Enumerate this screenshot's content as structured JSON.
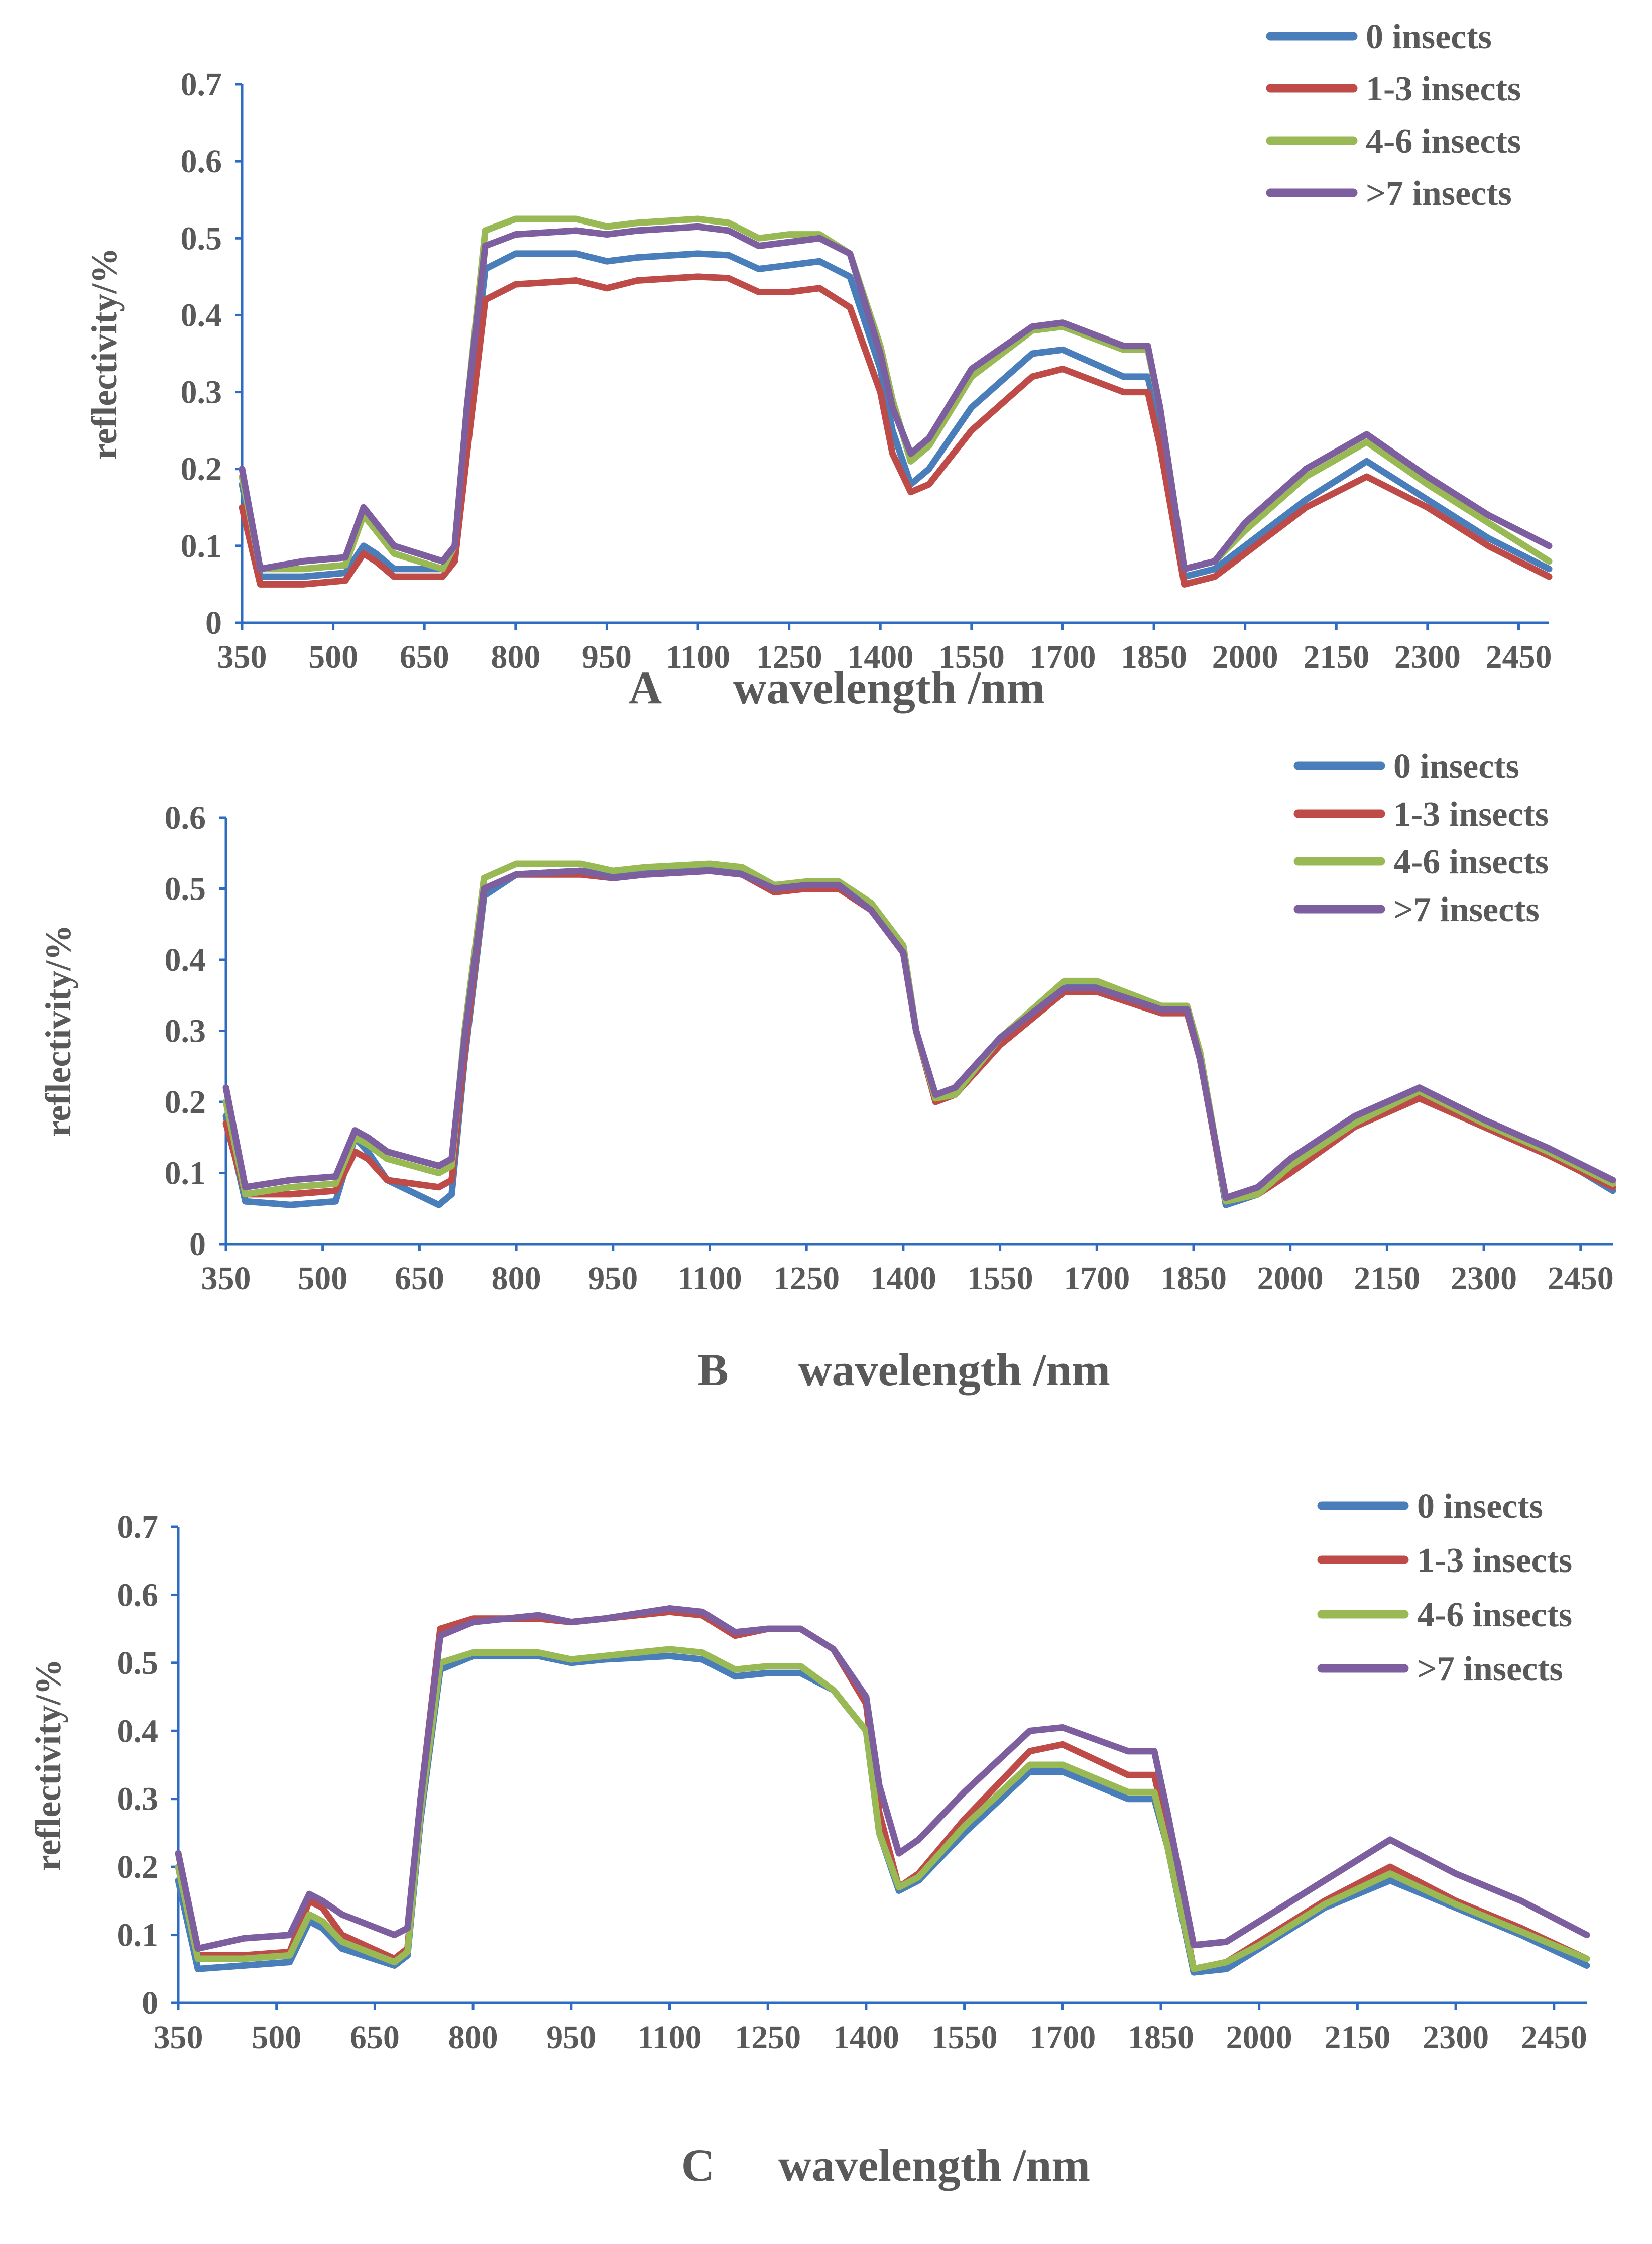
{
  "figure": {
    "panel_count": 3
  },
  "chart_data": [
    {
      "type": "line",
      "panel_label": "A",
      "xlabel": "wavelength /nm",
      "ylabel": "reflectivity/%",
      "xlim": [
        350,
        2500
      ],
      "ylim": [
        0,
        0.7
      ],
      "x_ticks": [
        350,
        500,
        650,
        800,
        950,
        1100,
        1250,
        1400,
        1550,
        1700,
        1850,
        2000,
        2150,
        2300,
        2450
      ],
      "y_ticks": [
        "0",
        "0.1",
        "0.2",
        "0.3",
        "0.4",
        "0.5",
        "0.6",
        "0.7"
      ],
      "legend": [
        "0 insects",
        "1-3 insects",
        "4-6 insects",
        ">7 insects"
      ],
      "x": [
        350,
        380,
        450,
        520,
        550,
        570,
        600,
        680,
        700,
        720,
        750,
        800,
        900,
        950,
        1000,
        1100,
        1150,
        1200,
        1250,
        1300,
        1350,
        1400,
        1420,
        1450,
        1480,
        1550,
        1650,
        1700,
        1800,
        1840,
        1860,
        1900,
        1950,
        2000,
        2100,
        2200,
        2300,
        2400,
        2500
      ],
      "series": [
        {
          "name": "0 insects",
          "color": "#4a7ebb",
          "values": [
            0.18,
            0.06,
            0.06,
            0.065,
            0.1,
            0.09,
            0.07,
            0.07,
            0.09,
            0.25,
            0.46,
            0.48,
            0.48,
            0.47,
            0.475,
            0.48,
            0.478,
            0.46,
            0.465,
            0.47,
            0.45,
            0.33,
            0.25,
            0.18,
            0.2,
            0.28,
            0.35,
            0.355,
            0.32,
            0.32,
            0.25,
            0.06,
            0.07,
            0.1,
            0.16,
            0.21,
            0.16,
            0.11,
            0.07
          ]
        },
        {
          "name": "1-3 insects",
          "color": "#be4b48",
          "values": [
            0.15,
            0.05,
            0.05,
            0.055,
            0.09,
            0.08,
            0.06,
            0.06,
            0.08,
            0.22,
            0.42,
            0.44,
            0.445,
            0.435,
            0.445,
            0.45,
            0.448,
            0.43,
            0.43,
            0.435,
            0.41,
            0.3,
            0.22,
            0.17,
            0.18,
            0.25,
            0.32,
            0.33,
            0.3,
            0.3,
            0.23,
            0.05,
            0.06,
            0.09,
            0.15,
            0.19,
            0.15,
            0.1,
            0.06
          ]
        },
        {
          "name": "4-6 insects",
          "color": "#98b954",
          "values": [
            0.19,
            0.07,
            0.07,
            0.075,
            0.14,
            0.12,
            0.09,
            0.07,
            0.1,
            0.28,
            0.51,
            0.525,
            0.525,
            0.515,
            0.52,
            0.525,
            0.52,
            0.5,
            0.505,
            0.505,
            0.48,
            0.36,
            0.29,
            0.21,
            0.23,
            0.32,
            0.38,
            0.385,
            0.355,
            0.355,
            0.28,
            0.07,
            0.08,
            0.12,
            0.19,
            0.235,
            0.18,
            0.13,
            0.08
          ]
        },
        {
          "name": ">7 insects",
          "color": "#7d5fa0",
          "values": [
            0.2,
            0.07,
            0.08,
            0.085,
            0.15,
            0.13,
            0.1,
            0.08,
            0.1,
            0.28,
            0.49,
            0.505,
            0.51,
            0.505,
            0.51,
            0.515,
            0.51,
            0.49,
            0.495,
            0.5,
            0.48,
            0.35,
            0.28,
            0.22,
            0.24,
            0.33,
            0.385,
            0.39,
            0.36,
            0.36,
            0.28,
            0.07,
            0.08,
            0.13,
            0.2,
            0.245,
            0.19,
            0.14,
            0.1
          ]
        }
      ]
    },
    {
      "type": "line",
      "panel_label": "B",
      "xlabel": "wavelength /nm",
      "ylabel": "reflectivity/%",
      "xlim": [
        350,
        2500
      ],
      "ylim": [
        0,
        0.6
      ],
      "x_ticks": [
        350,
        500,
        650,
        800,
        950,
        1100,
        1250,
        1400,
        1550,
        1700,
        1850,
        2000,
        2150,
        2300,
        2450
      ],
      "y_ticks": [
        "0",
        "0.1",
        "0.2",
        "0.3",
        "0.4",
        "0.5",
        "0.6"
      ],
      "legend": [
        "0 insects",
        "1-3 insects",
        "4-6 insects",
        ">7 insects"
      ],
      "x": [
        350,
        380,
        450,
        520,
        550,
        570,
        600,
        680,
        700,
        720,
        750,
        800,
        900,
        950,
        1000,
        1100,
        1150,
        1200,
        1250,
        1300,
        1350,
        1400,
        1420,
        1450,
        1480,
        1550,
        1650,
        1700,
        1800,
        1840,
        1860,
        1900,
        1950,
        2000,
        2100,
        2200,
        2300,
        2400,
        2500
      ],
      "series": [
        {
          "name": "0 insects",
          "color": "#4a7ebb",
          "values": [
            0.18,
            0.06,
            0.055,
            0.06,
            0.15,
            0.13,
            0.09,
            0.055,
            0.07,
            0.26,
            0.49,
            0.52,
            0.525,
            0.52,
            0.525,
            0.53,
            0.525,
            0.505,
            0.505,
            0.505,
            0.48,
            0.42,
            0.3,
            0.205,
            0.21,
            0.28,
            0.365,
            0.365,
            0.33,
            0.33,
            0.27,
            0.055,
            0.07,
            0.11,
            0.17,
            0.215,
            0.17,
            0.13,
            0.075
          ]
        },
        {
          "name": "1-3 insects",
          "color": "#be4b48",
          "values": [
            0.17,
            0.07,
            0.07,
            0.075,
            0.13,
            0.12,
            0.09,
            0.08,
            0.09,
            0.27,
            0.5,
            0.52,
            0.52,
            0.515,
            0.52,
            0.525,
            0.52,
            0.495,
            0.5,
            0.5,
            0.47,
            0.41,
            0.3,
            0.2,
            0.21,
            0.28,
            0.355,
            0.355,
            0.325,
            0.325,
            0.26,
            0.06,
            0.07,
            0.1,
            0.165,
            0.205,
            0.165,
            0.125,
            0.08
          ]
        },
        {
          "name": "4-6 insects",
          "color": "#98b954",
          "values": [
            0.2,
            0.07,
            0.08,
            0.085,
            0.15,
            0.14,
            0.12,
            0.1,
            0.11,
            0.3,
            0.515,
            0.535,
            0.535,
            0.525,
            0.53,
            0.535,
            0.53,
            0.505,
            0.51,
            0.51,
            0.48,
            0.42,
            0.3,
            0.205,
            0.21,
            0.29,
            0.37,
            0.37,
            0.335,
            0.335,
            0.27,
            0.06,
            0.07,
            0.11,
            0.17,
            0.215,
            0.17,
            0.13,
            0.085
          ]
        },
        {
          "name": ">7 insects",
          "color": "#7d5fa0",
          "values": [
            0.22,
            0.08,
            0.09,
            0.095,
            0.16,
            0.15,
            0.13,
            0.11,
            0.12,
            0.29,
            0.5,
            0.52,
            0.525,
            0.515,
            0.52,
            0.525,
            0.52,
            0.5,
            0.505,
            0.505,
            0.47,
            0.41,
            0.3,
            0.21,
            0.22,
            0.29,
            0.36,
            0.36,
            0.33,
            0.33,
            0.26,
            0.065,
            0.08,
            0.12,
            0.18,
            0.22,
            0.175,
            0.135,
            0.09
          ]
        }
      ]
    },
    {
      "type": "line",
      "panel_label": "C",
      "xlabel": "wavelength /nm",
      "ylabel": "reflectivity/%",
      "xlim": [
        350,
        2500
      ],
      "ylim": [
        0,
        0.7
      ],
      "x_ticks": [
        350,
        500,
        650,
        800,
        950,
        1100,
        1250,
        1400,
        1550,
        1700,
        1850,
        2000,
        2150,
        2300,
        2450
      ],
      "y_ticks": [
        "0",
        "0.1",
        "0.2",
        "0.3",
        "0.4",
        "0.5",
        "0.6",
        "0.7"
      ],
      "legend": [
        "0 insects",
        "1-3 insects",
        "4-6 insects",
        ">7 insects"
      ],
      "x": [
        350,
        380,
        450,
        520,
        550,
        570,
        600,
        680,
        700,
        720,
        750,
        800,
        900,
        950,
        1000,
        1100,
        1150,
        1200,
        1250,
        1300,
        1350,
        1400,
        1420,
        1450,
        1480,
        1550,
        1650,
        1700,
        1800,
        1840,
        1860,
        1900,
        1950,
        2000,
        2100,
        2200,
        2300,
        2400,
        2500
      ],
      "series": [
        {
          "name": "0 insects",
          "color": "#4a7ebb",
          "values": [
            0.18,
            0.05,
            0.055,
            0.06,
            0.12,
            0.11,
            0.08,
            0.055,
            0.07,
            0.27,
            0.49,
            0.51,
            0.51,
            0.5,
            0.505,
            0.51,
            0.505,
            0.48,
            0.485,
            0.485,
            0.46,
            0.4,
            0.25,
            0.165,
            0.18,
            0.25,
            0.34,
            0.34,
            0.3,
            0.3,
            0.23,
            0.045,
            0.05,
            0.08,
            0.14,
            0.18,
            0.14,
            0.1,
            0.055
          ]
        },
        {
          "name": "1-3 insects",
          "color": "#be4b48",
          "values": [
            0.2,
            0.07,
            0.07,
            0.075,
            0.15,
            0.14,
            0.1,
            0.065,
            0.08,
            0.3,
            0.55,
            0.565,
            0.565,
            0.56,
            0.565,
            0.575,
            0.57,
            0.54,
            0.55,
            0.55,
            0.52,
            0.44,
            0.28,
            0.17,
            0.19,
            0.27,
            0.37,
            0.38,
            0.335,
            0.335,
            0.25,
            0.05,
            0.06,
            0.09,
            0.15,
            0.2,
            0.15,
            0.11,
            0.065
          ]
        },
        {
          "name": "4-6 insects",
          "color": "#98b954",
          "values": [
            0.2,
            0.065,
            0.065,
            0.07,
            0.13,
            0.12,
            0.09,
            0.06,
            0.075,
            0.28,
            0.5,
            0.515,
            0.515,
            0.505,
            0.51,
            0.52,
            0.515,
            0.49,
            0.495,
            0.495,
            0.46,
            0.4,
            0.25,
            0.17,
            0.185,
            0.26,
            0.35,
            0.35,
            0.31,
            0.31,
            0.23,
            0.05,
            0.06,
            0.085,
            0.145,
            0.19,
            0.145,
            0.105,
            0.065
          ]
        },
        {
          "name": ">7 insects",
          "color": "#7d5fa0",
          "values": [
            0.22,
            0.08,
            0.095,
            0.1,
            0.16,
            0.15,
            0.13,
            0.1,
            0.11,
            0.3,
            0.54,
            0.56,
            0.57,
            0.56,
            0.565,
            0.58,
            0.575,
            0.545,
            0.55,
            0.55,
            0.52,
            0.45,
            0.32,
            0.22,
            0.24,
            0.31,
            0.4,
            0.405,
            0.37,
            0.37,
            0.28,
            0.085,
            0.09,
            0.12,
            0.18,
            0.24,
            0.19,
            0.15,
            0.1
          ]
        }
      ]
    }
  ]
}
